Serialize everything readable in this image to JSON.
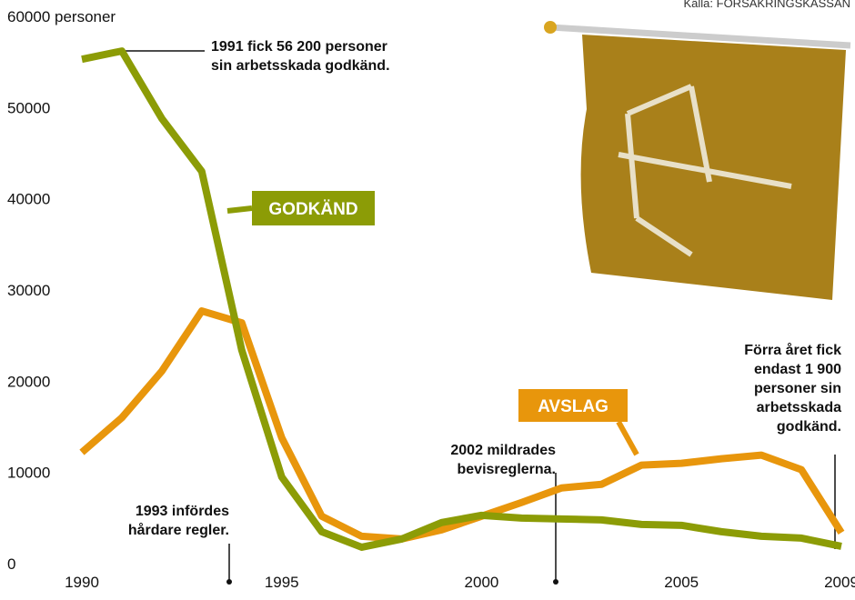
{
  "chart_data": {
    "type": "line",
    "source": "Källa: FÖRSÄKRINGSKASSAN",
    "x": [
      1990,
      1991,
      1992,
      1993,
      1994,
      1995,
      1996,
      1997,
      1998,
      1999,
      2000,
      2001,
      2002,
      2003,
      2004,
      2005,
      2006,
      2007,
      2008,
      2009
    ],
    "xticks": [
      1990,
      1995,
      2000,
      2005,
      2009
    ],
    "xlim": [
      1990,
      2009
    ],
    "ylim": [
      0,
      60000
    ],
    "yticks": [
      0,
      10000,
      20000,
      30000,
      40000,
      50000,
      {
        "value": 60000,
        "label": "60000 personer"
      }
    ],
    "series": [
      {
        "name": "GODKÄND",
        "color": "#8c9c06",
        "values": [
          55300,
          56200,
          48800,
          43000,
          23400,
          9500,
          3500,
          1800,
          2700,
          4500,
          5300,
          5000,
          4900,
          4800,
          4300,
          4200,
          3500,
          3000,
          2800,
          1900
        ]
      },
      {
        "name": "AVSLAG",
        "color": "#e8960c",
        "values": [
          12200,
          16000,
          21100,
          27700,
          26400,
          13800,
          5200,
          3000,
          2700,
          3700,
          5200,
          6700,
          8300,
          8700,
          10800,
          11000,
          11500,
          11900,
          10300,
          3400
        ]
      }
    ],
    "annotations": [
      [
        "1991 fick 56 200 personer",
        "sin arbetsskada godkänd."
      ],
      [
        "1993 infördes",
        "hårdare regler."
      ],
      [
        "2002 mildrades",
        "bevisreglerna."
      ],
      [
        "Förra året fick",
        "endast 1 900",
        "personer sin",
        "arbetsskada",
        "godkänd."
      ]
    ]
  }
}
